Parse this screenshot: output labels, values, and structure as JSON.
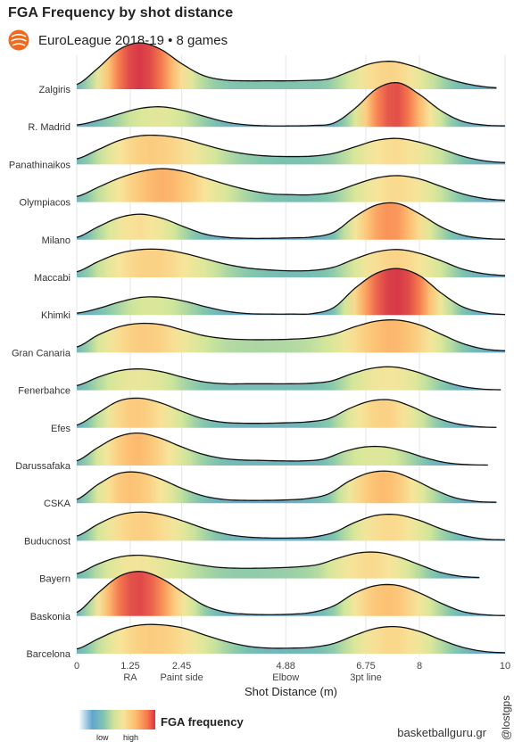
{
  "header": {
    "title": "FGA Frequency by shot distance",
    "subtitle": "EuroLeague 2018-19 • 8 games"
  },
  "colors": {
    "logo": "#f06a1d",
    "palette": [
      "#5e9fd0",
      "#7ec4ae",
      "#d3e79a",
      "#f7e59b",
      "#fdc173",
      "#f8804f",
      "#d73847"
    ]
  },
  "chart_data": {
    "type": "ridgeline",
    "xlabel": "Shot Distance (m)",
    "xlim": [
      0,
      10
    ],
    "x_ticks": [
      {
        "value": 0,
        "label": "0",
        "sub": ""
      },
      {
        "value": 1.25,
        "label": "1.25",
        "sub": "RA"
      },
      {
        "value": 2.45,
        "label": "2.45",
        "sub": "Paint side"
      },
      {
        "value": 4.88,
        "label": "4.88",
        "sub": "Elbow"
      },
      {
        "value": 6.75,
        "label": "6.75",
        "sub": "3pt line"
      },
      {
        "value": 8,
        "label": "8",
        "sub": ""
      },
      {
        "value": 10,
        "label": "10",
        "sub": ""
      }
    ],
    "grid": true,
    "series": [
      {
        "name": "Zalgiris",
        "xmax": 9.8,
        "y": [
          0.1,
          0.45,
          0.85,
          1.0,
          0.86,
          0.55,
          0.3,
          0.2,
          0.18,
          0.18,
          0.18,
          0.19,
          0.22,
          0.38,
          0.55,
          0.6,
          0.5,
          0.33,
          0.18,
          0.08,
          0.03
        ]
      },
      {
        "name": "R. Madrid",
        "xmax": 10.0,
        "y": [
          0.04,
          0.14,
          0.28,
          0.4,
          0.43,
          0.35,
          0.22,
          0.1,
          0.04,
          0.02,
          0.02,
          0.03,
          0.08,
          0.4,
          0.82,
          0.95,
          0.7,
          0.35,
          0.12,
          0.04,
          0.02
        ]
      },
      {
        "name": "Panathinaikos",
        "xmax": 10.0,
        "y": [
          0.12,
          0.32,
          0.52,
          0.62,
          0.62,
          0.55,
          0.42,
          0.3,
          0.22,
          0.18,
          0.17,
          0.18,
          0.24,
          0.38,
          0.52,
          0.56,
          0.48,
          0.34,
          0.18,
          0.08,
          0.04
        ]
      },
      {
        "name": "Olympiacos",
        "xmax": 10.0,
        "y": [
          0.12,
          0.32,
          0.52,
          0.66,
          0.72,
          0.66,
          0.52,
          0.38,
          0.26,
          0.18,
          0.16,
          0.16,
          0.22,
          0.38,
          0.52,
          0.57,
          0.5,
          0.34,
          0.18,
          0.08,
          0.04
        ]
      },
      {
        "name": "Milano",
        "xmax": 10.0,
        "y": [
          0.05,
          0.28,
          0.48,
          0.55,
          0.46,
          0.28,
          0.12,
          0.05,
          0.03,
          0.03,
          0.04,
          0.06,
          0.16,
          0.5,
          0.75,
          0.78,
          0.56,
          0.28,
          0.1,
          0.03,
          0.01
        ]
      },
      {
        "name": "Maccabi",
        "xmax": 10.0,
        "y": [
          0.12,
          0.34,
          0.52,
          0.6,
          0.6,
          0.52,
          0.4,
          0.28,
          0.2,
          0.16,
          0.14,
          0.15,
          0.22,
          0.4,
          0.55,
          0.6,
          0.52,
          0.36,
          0.18,
          0.08,
          0.04
        ]
      },
      {
        "name": "Khimki",
        "xmax": 10.0,
        "y": [
          0.04,
          0.14,
          0.28,
          0.38,
          0.38,
          0.3,
          0.18,
          0.08,
          0.03,
          0.02,
          0.02,
          0.03,
          0.16,
          0.58,
          0.9,
          1.0,
          0.85,
          0.48,
          0.18,
          0.05,
          0.01
        ]
      },
      {
        "name": "Gran Canaria",
        "xmax": 10.0,
        "y": [
          0.12,
          0.38,
          0.56,
          0.63,
          0.6,
          0.48,
          0.36,
          0.3,
          0.28,
          0.28,
          0.29,
          0.32,
          0.4,
          0.56,
          0.68,
          0.7,
          0.6,
          0.4,
          0.2,
          0.08,
          0.04
        ]
      },
      {
        "name": "Fenerbahce",
        "xmax": 9.9,
        "y": [
          0.1,
          0.28,
          0.42,
          0.46,
          0.4,
          0.28,
          0.18,
          0.14,
          0.14,
          0.14,
          0.14,
          0.15,
          0.2,
          0.36,
          0.48,
          0.5,
          0.4,
          0.24,
          0.1,
          0.03,
          0.01
        ]
      },
      {
        "name": "Efes",
        "xmax": 9.8,
        "y": [
          0.06,
          0.32,
          0.58,
          0.64,
          0.54,
          0.36,
          0.2,
          0.12,
          0.1,
          0.1,
          0.11,
          0.13,
          0.2,
          0.42,
          0.58,
          0.6,
          0.45,
          0.24,
          0.1,
          0.03,
          0.01
        ]
      },
      {
        "name": "Darussafaka",
        "xmax": 9.6,
        "y": [
          0.1,
          0.38,
          0.62,
          0.7,
          0.6,
          0.42,
          0.26,
          0.16,
          0.12,
          0.11,
          0.1,
          0.1,
          0.14,
          0.3,
          0.4,
          0.4,
          0.3,
          0.16,
          0.06,
          0.02,
          0.01
        ]
      },
      {
        "name": "CSKA",
        "xmax": 9.8,
        "y": [
          0.08,
          0.4,
          0.64,
          0.66,
          0.52,
          0.32,
          0.16,
          0.08,
          0.06,
          0.06,
          0.07,
          0.1,
          0.2,
          0.48,
          0.66,
          0.68,
          0.52,
          0.3,
          0.12,
          0.04,
          0.02
        ]
      },
      {
        "name": "Buducnost",
        "xmax": 10.0,
        "y": [
          0.1,
          0.36,
          0.56,
          0.62,
          0.56,
          0.42,
          0.26,
          0.14,
          0.08,
          0.06,
          0.06,
          0.08,
          0.18,
          0.4,
          0.55,
          0.56,
          0.44,
          0.26,
          0.12,
          0.04,
          0.02
        ]
      },
      {
        "name": "Bayern",
        "xmax": 9.4,
        "y": [
          0.1,
          0.3,
          0.45,
          0.5,
          0.46,
          0.38,
          0.3,
          0.24,
          0.22,
          0.22,
          0.23,
          0.25,
          0.3,
          0.44,
          0.55,
          0.56,
          0.46,
          0.3,
          0.14,
          0.05,
          0.02
        ]
      },
      {
        "name": "Baskonia",
        "xmax": 10.0,
        "y": [
          0.08,
          0.5,
          0.86,
          0.96,
          0.8,
          0.5,
          0.22,
          0.08,
          0.04,
          0.03,
          0.04,
          0.08,
          0.22,
          0.5,
          0.66,
          0.66,
          0.5,
          0.28,
          0.1,
          0.03,
          0.01
        ]
      },
      {
        "name": "Barcelona",
        "xmax": 10.0,
        "y": [
          0.1,
          0.32,
          0.52,
          0.62,
          0.62,
          0.55,
          0.4,
          0.26,
          0.16,
          0.12,
          0.12,
          0.14,
          0.22,
          0.4,
          0.55,
          0.58,
          0.48,
          0.3,
          0.14,
          0.05,
          0.02
        ]
      }
    ]
  },
  "legend": {
    "title": "FGA frequency",
    "low": "low",
    "high": "high"
  },
  "footer": {
    "site": "basketballguru.gr",
    "handle": "@lostgps"
  }
}
